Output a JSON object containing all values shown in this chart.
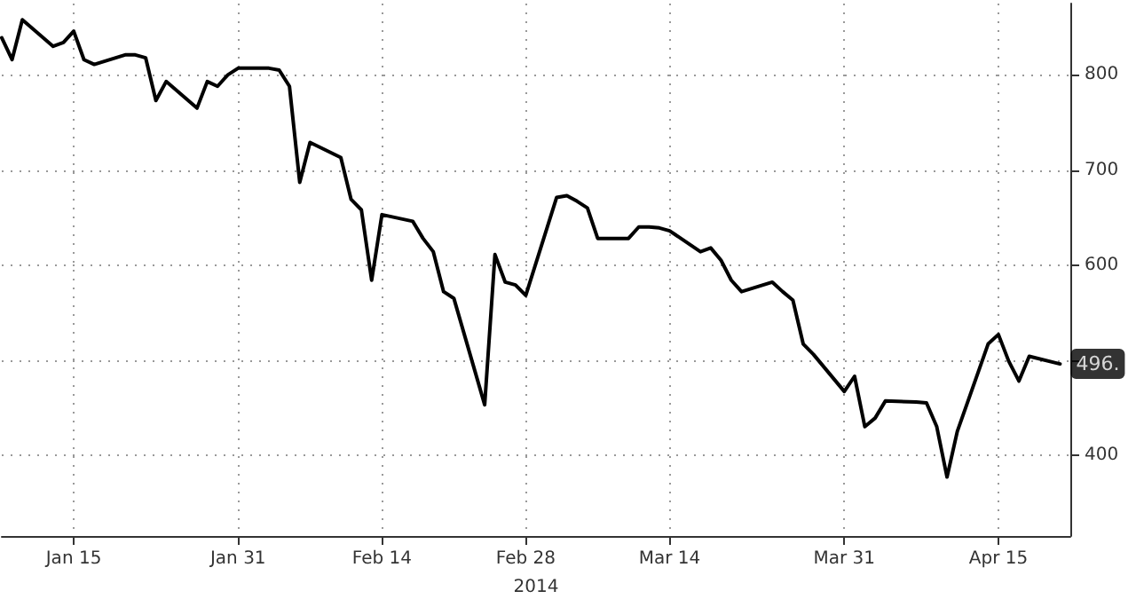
{
  "chart_data": {
    "type": "line",
    "xlabel": "2014",
    "x": [
      "2014-01-08",
      "2014-01-09",
      "2014-01-10",
      "2014-01-13",
      "2014-01-14",
      "2014-01-15",
      "2014-01-16",
      "2014-01-17",
      "2014-01-20",
      "2014-01-21",
      "2014-01-22",
      "2014-01-23",
      "2014-01-24",
      "2014-01-27",
      "2014-01-28",
      "2014-01-29",
      "2014-01-30",
      "2014-01-31",
      "2014-02-03",
      "2014-02-04",
      "2014-02-05",
      "2014-02-06",
      "2014-02-07",
      "2014-02-10",
      "2014-02-11",
      "2014-02-12",
      "2014-02-13",
      "2014-02-14",
      "2014-02-17",
      "2014-02-18",
      "2014-02-19",
      "2014-02-20",
      "2014-02-21",
      "2014-02-24",
      "2014-02-25",
      "2014-02-26",
      "2014-02-27",
      "2014-02-28",
      "2014-03-03",
      "2014-03-04",
      "2014-03-05",
      "2014-03-06",
      "2014-03-07",
      "2014-03-10",
      "2014-03-11",
      "2014-03-12",
      "2014-03-13",
      "2014-03-14",
      "2014-03-17",
      "2014-03-18",
      "2014-03-19",
      "2014-03-20",
      "2014-03-21",
      "2014-03-24",
      "2014-03-25",
      "2014-03-26",
      "2014-03-27",
      "2014-03-28",
      "2014-03-31",
      "2014-04-01",
      "2014-04-02",
      "2014-04-03",
      "2014-04-04",
      "2014-04-07",
      "2014-04-08",
      "2014-04-09",
      "2014-04-10",
      "2014-04-11",
      "2014-04-14",
      "2014-04-15",
      "2014-04-16",
      "2014-04-17",
      "2014-04-18",
      "2014-04-21"
    ],
    "series": [
      {
        "color": "#000000",
        "values": [
          839,
          816,
          858,
          830,
          834,
          846,
          816,
          811,
          821,
          821,
          818,
          773,
          793,
          765,
          793,
          788,
          800,
          807,
          807,
          805,
          788,
          687,
          729,
          713,
          669,
          658,
          584,
          653,
          646,
          628,
          614,
          572,
          565,
          453,
          611,
          582,
          579,
          568,
          671,
          673,
          667,
          660,
          628,
          628,
          640,
          640,
          639,
          636,
          614,
          618,
          605,
          584,
          572,
          582,
          572,
          563,
          517,
          506,
          467,
          483,
          430,
          439,
          457,
          456,
          455,
          430,
          377,
          425,
          517,
          527,
          499,
          478,
          504,
          496
        ]
      }
    ],
    "xlim": [
      "2014-01-08",
      "2014-04-22"
    ],
    "xticks": [
      {
        "value": "2014-01-15",
        "label": "Jan 15"
      },
      {
        "value": "2014-01-31",
        "label": "Jan 31"
      },
      {
        "value": "2014-02-14",
        "label": "Feb 14"
      },
      {
        "value": "2014-02-28",
        "label": "Feb 28"
      },
      {
        "value": "2014-03-14",
        "label": "Mar 14"
      },
      {
        "value": "2014-03-31",
        "label": "Mar 31"
      },
      {
        "value": "2014-04-15",
        "label": "Apr 15"
      }
    ],
    "ylim": [
      315,
      875
    ],
    "yticks": [
      400,
      {
        "value": 500,
        "label": null
      },
      600,
      700,
      800
    ],
    "annotations": [
      {
        "text": "496.",
        "x": "2014-04-21",
        "y": 496
      }
    ],
    "grid": true,
    "marker": "none",
    "line_style": "solid"
  }
}
